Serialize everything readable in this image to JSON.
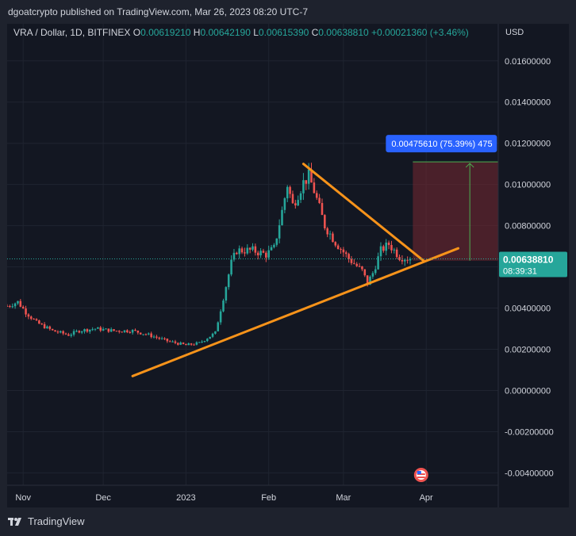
{
  "header": {
    "publisher_line": "dgoatcrypto published on TradingView.com, Mar 26, 2023 08:20 UTC-7"
  },
  "legend": {
    "symbol": "VRA / Dollar, 1D, BITFINEX",
    "open_label": "O",
    "open": "0.00619210",
    "high_label": "H",
    "high": "0.00642190",
    "low_label": "L",
    "low": "0.00615390",
    "close_label": "C",
    "close": "0.00638810",
    "change": "+0.00021360 (+3.46%)"
  },
  "footer": {
    "brand": "TradingView"
  },
  "colors": {
    "up": "#26a69a",
    "down": "#ef5350",
    "trendline": "#f7931a",
    "target": "#2962ff",
    "price_label_bg": "#26a69a",
    "background": "#131722"
  },
  "chart_data": {
    "type": "candlestick",
    "currency": "USD",
    "y_ticks": [
      "0.01600000",
      "0.01400000",
      "0.01200000",
      "0.01000000",
      "0.00800000",
      "0.00600000",
      "0.00400000",
      "0.00200000",
      "0.00000000",
      "-0.00200000",
      "-0.00400000"
    ],
    "y_tick_values": [
      0.016,
      0.014,
      0.012,
      0.01,
      0.008,
      0.006,
      0.004,
      0.002,
      0.0,
      -0.002,
      -0.004
    ],
    "x_ticks": [
      "Nov",
      "Dec",
      "2023",
      "Feb",
      "Mar",
      "Apr"
    ],
    "x_tick_dates": [
      "2022-11-01",
      "2022-12-01",
      "2023-01-01",
      "2023-02-01",
      "2023-03-01",
      "2023-04-01"
    ],
    "ylim": [
      -0.0046,
      0.0178
    ],
    "xlim": [
      "2022-10-26",
      "2023-04-28"
    ],
    "last_price": "0.00638810",
    "countdown": "08:39:31",
    "last_price_value": 0.0063881,
    "price_series": [
      [
        "2022-10-26",
        0.0041
      ],
      [
        "2022-10-30",
        0.0043
      ],
      [
        "2022-11-02",
        0.0038
      ],
      [
        "2022-11-06",
        0.0033
      ],
      [
        "2022-11-12",
        0.0029
      ],
      [
        "2022-11-18",
        0.0027
      ],
      [
        "2022-11-22",
        0.0029
      ],
      [
        "2022-11-28",
        0.003
      ],
      [
        "2022-12-05",
        0.0029
      ],
      [
        "2022-12-12",
        0.0029
      ],
      [
        "2022-12-18",
        0.0027
      ],
      [
        "2022-12-25",
        0.0024
      ],
      [
        "2023-01-01",
        0.0022
      ],
      [
        "2023-01-06",
        0.0023
      ],
      [
        "2023-01-12",
        0.0028
      ],
      [
        "2023-01-15",
        0.0045
      ],
      [
        "2023-01-18",
        0.0062
      ],
      [
        "2023-01-20",
        0.0068
      ],
      [
        "2023-01-26",
        0.0068
      ],
      [
        "2023-01-31",
        0.0066
      ],
      [
        "2023-02-03",
        0.0069
      ],
      [
        "2023-02-06",
        0.0087
      ],
      [
        "2023-02-08",
        0.01
      ],
      [
        "2023-02-10",
        0.009
      ],
      [
        "2023-02-14",
        0.0101
      ],
      [
        "2023-02-16",
        0.0104
      ],
      [
        "2023-02-18",
        0.0097
      ],
      [
        "2023-02-22",
        0.008
      ],
      [
        "2023-02-26",
        0.0072
      ],
      [
        "2023-03-03",
        0.0064
      ],
      [
        "2023-03-08",
        0.0058
      ],
      [
        "2023-03-10",
        0.0052
      ],
      [
        "2023-03-12",
        0.0057
      ],
      [
        "2023-03-15",
        0.0068
      ],
      [
        "2023-03-18",
        0.0071
      ],
      [
        "2023-03-22",
        0.0065
      ],
      [
        "2023-03-26",
        0.0063881
      ]
    ],
    "trendlines": [
      {
        "name": "support",
        "from": [
          "2022-12-12",
          0.0007
        ],
        "to": [
          "2023-04-13",
          0.0069
        ]
      },
      {
        "name": "resistance",
        "from": [
          "2023-02-14",
          0.011
        ],
        "to": [
          "2023-03-31",
          0.0063
        ]
      }
    ],
    "long_position": {
      "label": "0.00475610 (75.39%) 475",
      "entry": 0.0063,
      "target": 0.0111,
      "start": "2023-03-27",
      "end": "2023-04-28"
    }
  }
}
